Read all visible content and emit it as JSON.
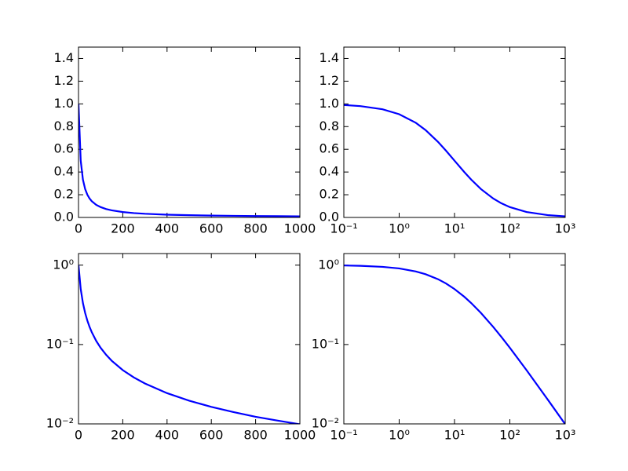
{
  "chart_data": [
    {
      "type": "line",
      "xscale": "linear",
      "yscale": "linear",
      "color": "#0000ff",
      "x": [
        0,
        10,
        20,
        30,
        40,
        50,
        60,
        80,
        100,
        125,
        150,
        200,
        250,
        300,
        400,
        500,
        600,
        700,
        800,
        900,
        1000
      ],
      "values": [
        1,
        0.5,
        0.3333,
        0.25,
        0.2,
        0.1667,
        0.1429,
        0.1111,
        0.0909,
        0.0741,
        0.0625,
        0.0476,
        0.0385,
        0.0323,
        0.0244,
        0.0196,
        0.0164,
        0.0141,
        0.0123,
        0.011,
        0.0099
      ],
      "xlim": [
        0,
        1000
      ],
      "xticks": [
        0,
        200,
        400,
        600,
        800,
        1000
      ],
      "ylim": [
        0,
        1.5
      ],
      "yticks": [
        {
          "value": 0,
          "label": "0.0"
        },
        {
          "value": 0.2,
          "label": "0.2"
        },
        {
          "value": 0.4,
          "label": "0.4"
        },
        {
          "value": 0.6,
          "label": "0.6"
        },
        {
          "value": 0.8,
          "label": "0.8"
        },
        {
          "value": 1,
          "label": "1.0"
        },
        {
          "value": 1.2,
          "label": "1.2"
        },
        {
          "value": 1.4,
          "label": "1.4"
        }
      ]
    },
    {
      "type": "line",
      "xscale": "log",
      "yscale": "linear",
      "color": "#0000ff",
      "x": [
        0.1,
        0.2,
        0.5,
        1,
        2,
        3,
        5,
        7,
        10,
        15,
        20,
        30,
        50,
        70,
        100,
        200,
        500,
        1000
      ],
      "values": [
        0.9901,
        0.9804,
        0.9524,
        0.9091,
        0.8333,
        0.7692,
        0.6667,
        0.5882,
        0.5,
        0.4,
        0.3333,
        0.25,
        0.1667,
        0.125,
        0.0909,
        0.0476,
        0.0196,
        0.0099
      ],
      "xlim": [
        0.1,
        1000
      ],
      "xticks": [
        {
          "value": 0.1,
          "label": "10⁻¹"
        },
        {
          "value": 1,
          "label": "10⁰"
        },
        {
          "value": 10,
          "label": "10¹"
        },
        {
          "value": 100,
          "label": "10²"
        },
        {
          "value": 1000,
          "label": "10³"
        }
      ],
      "ylim": [
        0,
        1.5
      ],
      "yticks": [
        {
          "value": 0,
          "label": "0.0"
        },
        {
          "value": 0.2,
          "label": "0.2"
        },
        {
          "value": 0.4,
          "label": "0.4"
        },
        {
          "value": 0.6,
          "label": "0.6"
        },
        {
          "value": 0.8,
          "label": "0.8"
        },
        {
          "value": 1,
          "label": "1.0"
        },
        {
          "value": 1.2,
          "label": "1.2"
        },
        {
          "value": 1.4,
          "label": "1.4"
        }
      ]
    },
    {
      "type": "line",
      "xscale": "linear",
      "yscale": "log",
      "color": "#0000ff",
      "x": [
        0,
        10,
        20,
        30,
        40,
        50,
        60,
        80,
        100,
        125,
        150,
        200,
        250,
        300,
        400,
        500,
        600,
        700,
        800,
        900,
        1000
      ],
      "values": [
        1,
        0.5,
        0.3333,
        0.25,
        0.2,
        0.1667,
        0.1429,
        0.1111,
        0.0909,
        0.0741,
        0.0625,
        0.0476,
        0.0385,
        0.0323,
        0.0244,
        0.0196,
        0.0164,
        0.0141,
        0.0123,
        0.011,
        0.0099
      ],
      "xlim": [
        0,
        1000
      ],
      "xticks": [
        0,
        200,
        400,
        600,
        800,
        1000
      ],
      "ylim": [
        0.01,
        1.4
      ],
      "yticks": [
        {
          "value": 0.01,
          "label": "10⁻²"
        },
        {
          "value": 0.1,
          "label": "10⁻¹"
        },
        {
          "value": 1,
          "label": "10⁰"
        }
      ]
    },
    {
      "type": "line",
      "xscale": "log",
      "yscale": "log",
      "color": "#0000ff",
      "x": [
        0.1,
        0.2,
        0.5,
        1,
        2,
        3,
        5,
        7,
        10,
        15,
        20,
        30,
        50,
        70,
        100,
        200,
        500,
        1000
      ],
      "values": [
        0.9901,
        0.9804,
        0.9524,
        0.9091,
        0.8333,
        0.7692,
        0.6667,
        0.5882,
        0.5,
        0.4,
        0.3333,
        0.25,
        0.1667,
        0.125,
        0.0909,
        0.0476,
        0.0196,
        0.0099
      ],
      "xlim": [
        0.1,
        1000
      ],
      "xticks": [
        {
          "value": 0.1,
          "label": "10⁻¹"
        },
        {
          "value": 1,
          "label": "10⁰"
        },
        {
          "value": 10,
          "label": "10¹"
        },
        {
          "value": 100,
          "label": "10²"
        },
        {
          "value": 1000,
          "label": "10³"
        }
      ],
      "ylim": [
        0.01,
        1.4
      ],
      "yticks": [
        {
          "value": 0.01,
          "label": "10⁻²"
        },
        {
          "value": 0.1,
          "label": "10⁻¹"
        },
        {
          "value": 1,
          "label": "10⁰"
        }
      ]
    }
  ]
}
